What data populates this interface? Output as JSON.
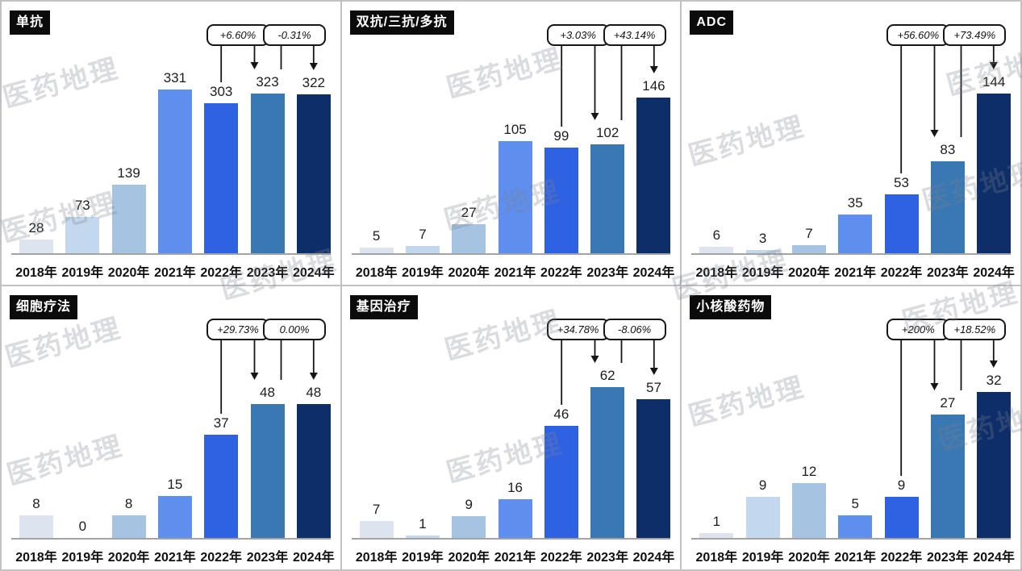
{
  "watermark": {
    "text": "医药地理"
  },
  "bar_colors": [
    "#dde4ef",
    "#c3d7ee",
    "#a6c3e2",
    "#5e8fee",
    "#2f62e3",
    "#3a78b3",
    "#0d2e68"
  ],
  "chart_data": [
    {
      "type": "bar",
      "title": "单抗",
      "categories": [
        "2018年",
        "2019年",
        "2020年",
        "2021年",
        "2022年",
        "2023年",
        "2024年"
      ],
      "values": [
        28,
        73,
        139,
        331,
        303,
        323,
        322
      ],
      "annotations": [
        {
          "text": "+6.60%",
          "from": "2022年",
          "to": "2023年"
        },
        {
          "text": "-0.31%",
          "from": "2023年",
          "to": "2024年"
        }
      ]
    },
    {
      "type": "bar",
      "title": "双抗/三抗/多抗",
      "categories": [
        "2018年",
        "2019年",
        "2020年",
        "2021年",
        "2022年",
        "2023年",
        "2024年"
      ],
      "values": [
        5,
        7,
        27,
        105,
        99,
        102,
        146
      ],
      "annotations": [
        {
          "text": "+3.03%",
          "from": "2022年",
          "to": "2023年"
        },
        {
          "text": "+43.14%",
          "from": "2023年",
          "to": "2024年"
        }
      ]
    },
    {
      "type": "bar",
      "title": "ADC",
      "categories": [
        "2018年",
        "2019年",
        "2020年",
        "2021年",
        "2022年",
        "2023年",
        "2024年"
      ],
      "values": [
        6,
        3,
        7,
        35,
        53,
        83,
        144
      ],
      "annotations": [
        {
          "text": "+56.60%",
          "from": "2022年",
          "to": "2023年"
        },
        {
          "text": "+73.49%",
          "from": "2023年",
          "to": "2024年"
        }
      ]
    },
    {
      "type": "bar",
      "title": "细胞疗法",
      "categories": [
        "2018年",
        "2019年",
        "2020年",
        "2021年",
        "2022年",
        "2023年",
        "2024年"
      ],
      "values": [
        8,
        0,
        8,
        15,
        37,
        48,
        48
      ],
      "annotations": [
        {
          "text": "+29.73%",
          "from": "2022年",
          "to": "2023年"
        },
        {
          "text": "0.00%",
          "from": "2023年",
          "to": "2024年"
        }
      ]
    },
    {
      "type": "bar",
      "title": "基因治疗",
      "categories": [
        "2018年",
        "2019年",
        "2020年",
        "2021年",
        "2022年",
        "2023年",
        "2024年"
      ],
      "values": [
        7,
        1,
        9,
        16,
        46,
        62,
        57
      ],
      "annotations": [
        {
          "text": "+34.78%",
          "from": "2022年",
          "to": "2023年"
        },
        {
          "text": "-8.06%",
          "from": "2023年",
          "to": "2024年"
        }
      ]
    },
    {
      "type": "bar",
      "title": "小核酸药物",
      "categories": [
        "2018年",
        "2019年",
        "2020年",
        "2021年",
        "2022年",
        "2023年",
        "2024年"
      ],
      "values": [
        1,
        9,
        12,
        5,
        9,
        27,
        32
      ],
      "annotations": [
        {
          "text": "+200%",
          "from": "2022年",
          "to": "2023年"
        },
        {
          "text": "+18.52%",
          "from": "2023年",
          "to": "2024年"
        }
      ]
    }
  ]
}
